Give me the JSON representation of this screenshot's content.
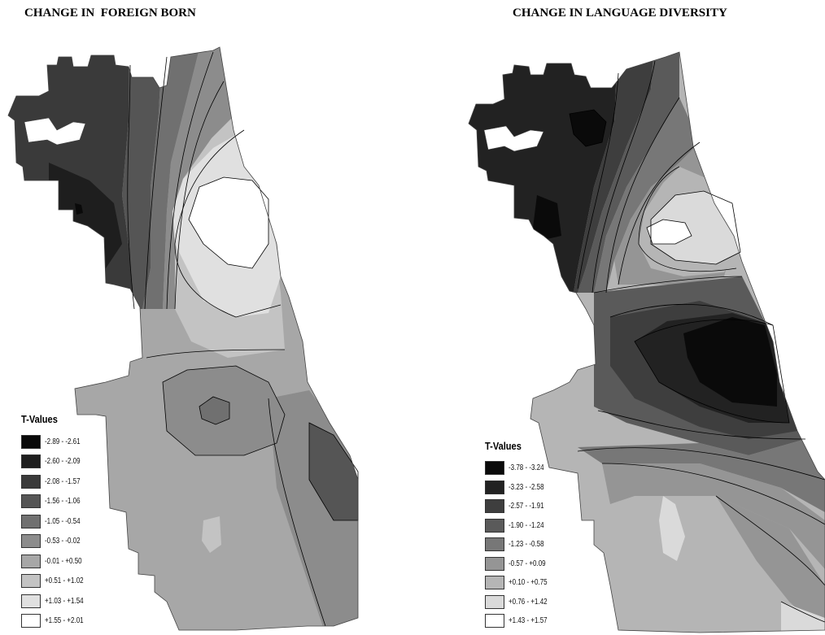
{
  "maps": [
    {
      "title": "CHANGE IN  FOREIGN BORN",
      "legend": {
        "title": "T-Values",
        "classes": [
          {
            "range": "-2.89 - -2.61",
            "color": "#0a0a0a"
          },
          {
            "range": "-2.60 - -2.09",
            "color": "#1e1e1e"
          },
          {
            "range": "-2.08 - -1.57",
            "color": "#3a3a3a"
          },
          {
            "range": "-1.56 - -1.06",
            "color": "#555555"
          },
          {
            "range": "-1.05 - -0.54",
            "color": "#707070"
          },
          {
            "range": "-0.53 - -0.02",
            "color": "#8c8c8c"
          },
          {
            "range": "-0.01 - +0.50",
            "color": "#a7a7a7"
          },
          {
            "range": "+0.51 - +1.02",
            "color": "#c3c3c3"
          },
          {
            "range": "+1.03 - +1.54",
            "color": "#e0e0e0"
          },
          {
            "range": "+1.55 - +2.01",
            "color": "#ffffff"
          }
        ]
      }
    },
    {
      "title": "CHANGE IN LANGUAGE DIVERSITY",
      "legend": {
        "title": "T-Values",
        "classes": [
          {
            "range": "-3.78 - -3.24",
            "color": "#0a0a0a"
          },
          {
            "range": "-3.23 - -2.58",
            "color": "#222222"
          },
          {
            "range": "-2.57 - -1.91",
            "color": "#3e3e3e"
          },
          {
            "range": "-1.90 - -1.24",
            "color": "#5a5a5a"
          },
          {
            "range": "-1.23 - -0.58",
            "color": "#777777"
          },
          {
            "range": "-0.57 - +0.09",
            "color": "#959595"
          },
          {
            "range": "+0.10 - +0.75",
            "color": "#b5b5b5"
          },
          {
            "range": "+0.76 - +1.42",
            "color": "#dadada"
          },
          {
            "range": "+1.43 - +1.57",
            "color": "#ffffff"
          }
        ]
      }
    }
  ]
}
